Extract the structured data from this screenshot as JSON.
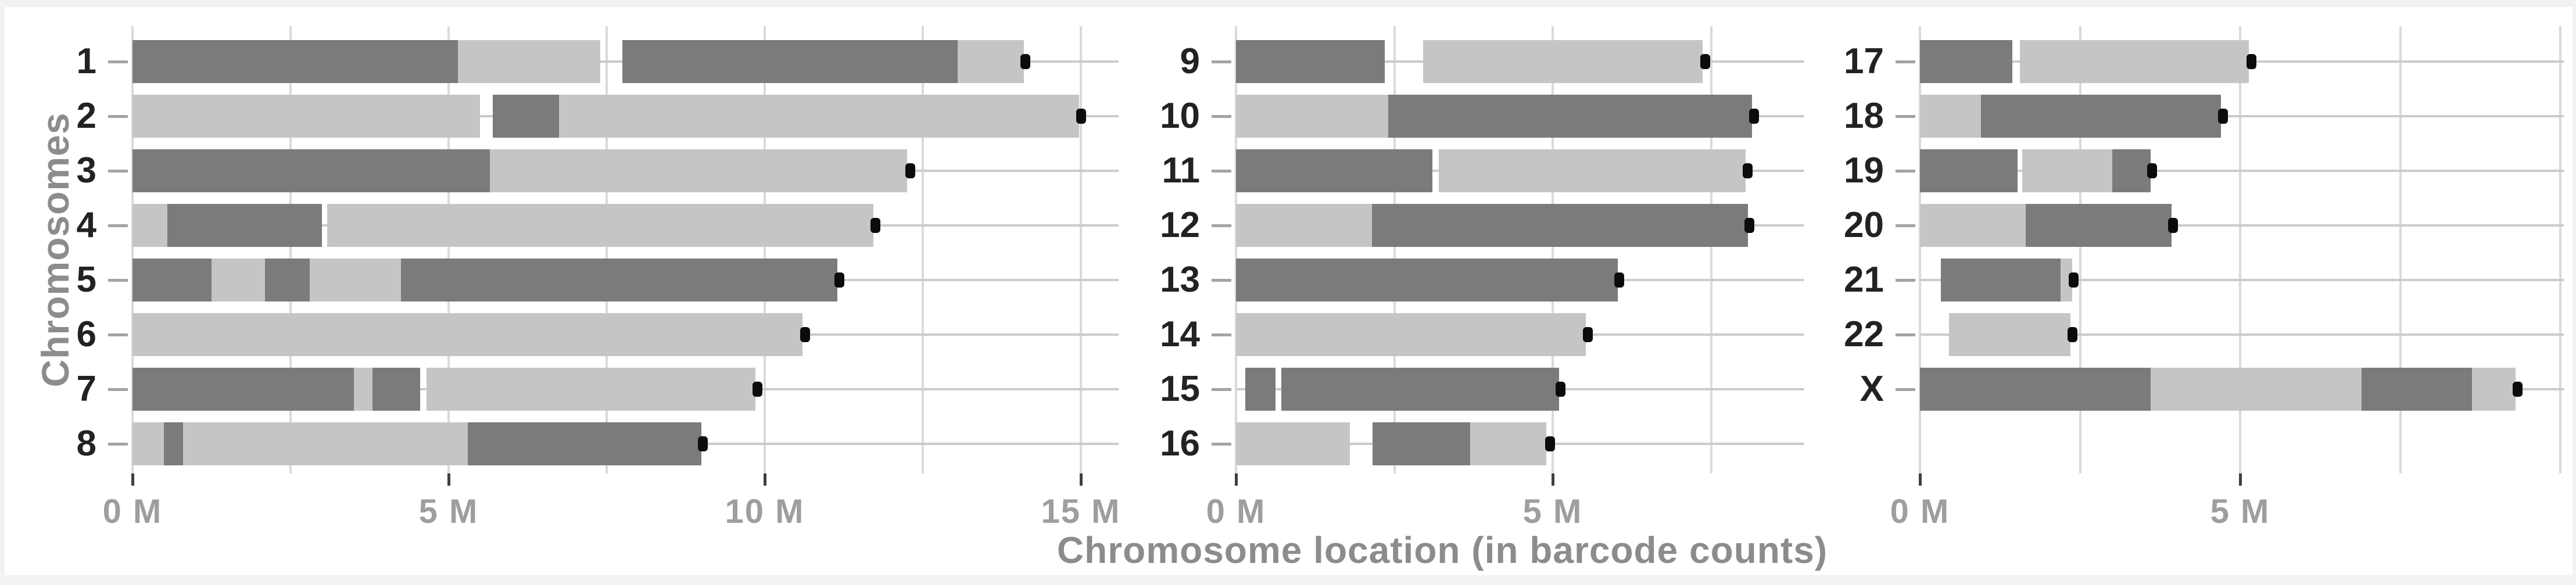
{
  "y_axis_title": "Chromosomes",
  "x_axis_title": "Chromosome location (in barcode counts)",
  "colors": {
    "bar_dark": "#7b7b7b",
    "bar_light": "#c5c5c5",
    "end_marker": "#0c0c0c",
    "vertical_gridline": "#dadada",
    "row_gridline": "#cbcbcb",
    "x_tick_mark": "#3f3f3f",
    "x_tick_label": "#9e9e9e",
    "axis_title": "#8c8c8c",
    "y_tick_label": "#222222",
    "frame": "#f2f2f2",
    "background": "#ffffff"
  },
  "chart_data": {
    "type": "bar",
    "orientation": "horizontal",
    "stacked": true,
    "title": "",
    "xlabel": "Chromosome location (in barcode counts)",
    "ylabel": "Chromosomes",
    "x_unit": "M (millions)",
    "grid_interval_m": 2.5,
    "legend_position": "none",
    "panels": [
      {
        "x_ticks": [
          {
            "value": 0,
            "label": "0 M"
          },
          {
            "value": 5,
            "label": "5 M"
          },
          {
            "value": 10,
            "label": "10 M"
          },
          {
            "value": 15,
            "label": "15 M"
          }
        ],
        "x_max_m": 15.6,
        "grid_max_m": 15,
        "rows": [
          {
            "chromosome": "1",
            "point_m": 14.12,
            "segments": [
              {
                "from_m": 0,
                "to_m": 5.15,
                "tone": "dark"
              },
              {
                "from_m": 5.15,
                "to_m": 7.4,
                "tone": "light"
              },
              {
                "from_m": 7.75,
                "to_m": 13.05,
                "tone": "dark"
              },
              {
                "from_m": 13.05,
                "to_m": 14.1,
                "tone": "light"
              }
            ]
          },
          {
            "chromosome": "2",
            "point_m": 15.0,
            "segments": [
              {
                "from_m": 0,
                "to_m": 5.5,
                "tone": "light"
              },
              {
                "from_m": 5.7,
                "to_m": 6.75,
                "tone": "dark"
              },
              {
                "from_m": 6.75,
                "to_m": 14.97,
                "tone": "light"
              }
            ]
          },
          {
            "chromosome": "3",
            "point_m": 12.3,
            "segments": [
              {
                "from_m": 0,
                "to_m": 5.65,
                "tone": "dark"
              },
              {
                "from_m": 5.65,
                "to_m": 12.25,
                "tone": "light"
              }
            ]
          },
          {
            "chromosome": "4",
            "point_m": 11.75,
            "segments": [
              {
                "from_m": 0,
                "to_m": 0.55,
                "tone": "light"
              },
              {
                "from_m": 0.55,
                "to_m": 3.0,
                "tone": "dark"
              },
              {
                "from_m": 3.08,
                "to_m": 11.72,
                "tone": "light"
              }
            ]
          },
          {
            "chromosome": "5",
            "point_m": 11.18,
            "segments": [
              {
                "from_m": 0,
                "to_m": 1.25,
                "tone": "dark"
              },
              {
                "from_m": 1.25,
                "to_m": 2.1,
                "tone": "light"
              },
              {
                "from_m": 2.1,
                "to_m": 2.8,
                "tone": "dark"
              },
              {
                "from_m": 2.8,
                "to_m": 4.25,
                "tone": "light"
              },
              {
                "from_m": 4.25,
                "to_m": 11.15,
                "tone": "dark"
              }
            ]
          },
          {
            "chromosome": "6",
            "point_m": 10.63,
            "segments": [
              {
                "from_m": 0,
                "to_m": 10.6,
                "tone": "light"
              }
            ]
          },
          {
            "chromosome": "7",
            "point_m": 9.88,
            "segments": [
              {
                "from_m": 0,
                "to_m": 3.5,
                "tone": "dark"
              },
              {
                "from_m": 3.5,
                "to_m": 3.8,
                "tone": "light"
              },
              {
                "from_m": 3.8,
                "to_m": 4.55,
                "tone": "dark"
              },
              {
                "from_m": 4.65,
                "to_m": 9.85,
                "tone": "light"
              }
            ]
          },
          {
            "chromosome": "8",
            "point_m": 9.02,
            "segments": [
              {
                "from_m": 0,
                "to_m": 0.5,
                "tone": "light"
              },
              {
                "from_m": 0.5,
                "to_m": 0.8,
                "tone": "dark"
              },
              {
                "from_m": 0.8,
                "to_m": 5.3,
                "tone": "light"
              },
              {
                "from_m": 5.3,
                "to_m": 9.0,
                "tone": "dark"
              }
            ]
          }
        ]
      },
      {
        "x_ticks": [
          {
            "value": 0,
            "label": "0 M"
          },
          {
            "value": 5,
            "label": "5 M"
          }
        ],
        "x_max_m": 8.95,
        "grid_max_m": 7.5,
        "rows": [
          {
            "chromosome": "9",
            "point_m": 7.4,
            "segments": [
              {
                "from_m": 0,
                "to_m": 2.35,
                "tone": "dark"
              },
              {
                "from_m": 2.95,
                "to_m": 7.37,
                "tone": "light"
              }
            ]
          },
          {
            "chromosome": "10",
            "point_m": 8.17,
            "segments": [
              {
                "from_m": 0,
                "to_m": 2.4,
                "tone": "light"
              },
              {
                "from_m": 2.4,
                "to_m": 8.15,
                "tone": "dark"
              }
            ]
          },
          {
            "chromosome": "11",
            "point_m": 8.07,
            "segments": [
              {
                "from_m": 0,
                "to_m": 3.1,
                "tone": "dark"
              },
              {
                "from_m": 3.2,
                "to_m": 8.05,
                "tone": "light"
              }
            ]
          },
          {
            "chromosome": "12",
            "point_m": 8.1,
            "segments": [
              {
                "from_m": 0,
                "to_m": 2.15,
                "tone": "light"
              },
              {
                "from_m": 2.15,
                "to_m": 8.08,
                "tone": "dark"
              }
            ]
          },
          {
            "chromosome": "13",
            "point_m": 6.05,
            "segments": [
              {
                "from_m": 0,
                "to_m": 6.03,
                "tone": "dark"
              }
            ]
          },
          {
            "chromosome": "14",
            "point_m": 5.55,
            "segments": [
              {
                "from_m": 0,
                "to_m": 5.52,
                "tone": "light"
              }
            ]
          },
          {
            "chromosome": "15",
            "point_m": 5.12,
            "segments": [
              {
                "from_m": 0.15,
                "to_m": 0.62,
                "tone": "dark"
              },
              {
                "from_m": 0.72,
                "to_m": 5.1,
                "tone": "dark"
              }
            ]
          },
          {
            "chromosome": "16",
            "point_m": 4.95,
            "segments": [
              {
                "from_m": 0,
                "to_m": 1.8,
                "tone": "light"
              },
              {
                "from_m": 2.16,
                "to_m": 3.7,
                "tone": "dark"
              },
              {
                "from_m": 3.7,
                "to_m": 4.9,
                "tone": "light"
              }
            ]
          }
        ]
      },
      {
        "x_ticks": [
          {
            "value": 0,
            "label": "0 M"
          },
          {
            "value": 5,
            "label": "5 M"
          }
        ],
        "x_max_m": 10.05,
        "grid_max_m": 10,
        "rows": [
          {
            "chromosome": "17",
            "point_m": 5.17,
            "segments": [
              {
                "from_m": 0,
                "to_m": 1.44,
                "tone": "dark"
              },
              {
                "from_m": 1.56,
                "to_m": 5.14,
                "tone": "light"
              }
            ]
          },
          {
            "chromosome": "18",
            "point_m": 4.73,
            "segments": [
              {
                "from_m": 0,
                "to_m": 0.95,
                "tone": "light"
              },
              {
                "from_m": 0.95,
                "to_m": 4.7,
                "tone": "dark"
              }
            ]
          },
          {
            "chromosome": "19",
            "point_m": 3.62,
            "segments": [
              {
                "from_m": 0,
                "to_m": 1.52,
                "tone": "dark"
              },
              {
                "from_m": 1.6,
                "to_m": 3.0,
                "tone": "light"
              },
              {
                "from_m": 3.0,
                "to_m": 3.6,
                "tone": "dark"
              }
            ]
          },
          {
            "chromosome": "20",
            "point_m": 3.95,
            "segments": [
              {
                "from_m": 0,
                "to_m": 1.65,
                "tone": "light"
              },
              {
                "from_m": 1.65,
                "to_m": 3.93,
                "tone": "dark"
              }
            ]
          },
          {
            "chromosome": "21",
            "point_m": 2.4,
            "segments": [
              {
                "from_m": 0.33,
                "to_m": 2.2,
                "tone": "dark"
              },
              {
                "from_m": 2.2,
                "to_m": 2.38,
                "tone": "light"
              }
            ]
          },
          {
            "chromosome": "22",
            "point_m": 2.38,
            "segments": [
              {
                "from_m": 0.45,
                "to_m": 2.35,
                "tone": "light"
              }
            ]
          },
          {
            "chromosome": "X",
            "point_m": 9.33,
            "segments": [
              {
                "from_m": 0,
                "to_m": 3.6,
                "tone": "dark"
              },
              {
                "from_m": 3.6,
                "to_m": 6.9,
                "tone": "light"
              },
              {
                "from_m": 6.9,
                "to_m": 8.62,
                "tone": "dark"
              },
              {
                "from_m": 8.62,
                "to_m": 9.3,
                "tone": "light"
              }
            ]
          }
        ]
      }
    ]
  }
}
